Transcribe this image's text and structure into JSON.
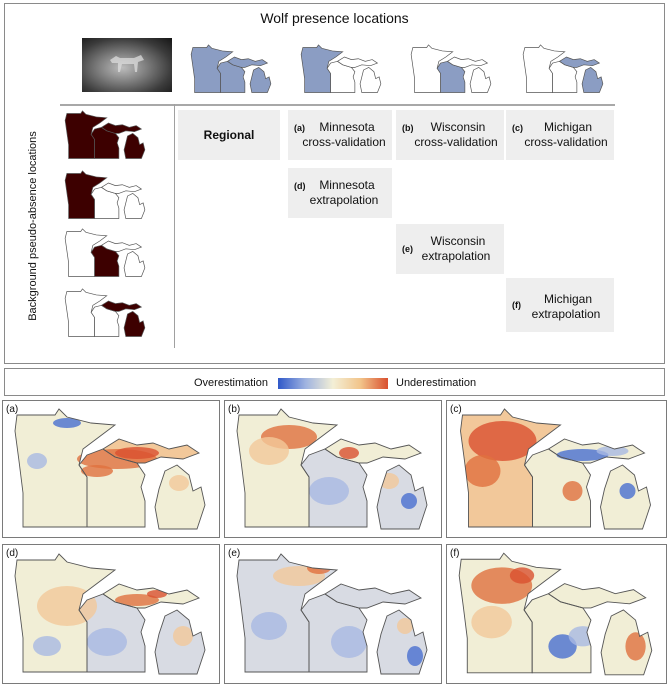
{
  "header": {
    "title": "Wolf presence locations"
  },
  "side": {
    "ylabel": "Background pseudo-absence locations"
  },
  "cells": {
    "regional": "Regional",
    "a": {
      "tag": "(a)",
      "line1": "Minnesota",
      "line2": "cross-validation"
    },
    "b": {
      "tag": "(b)",
      "line1": "Wisconsin",
      "line2": "cross-validation"
    },
    "c": {
      "tag": "(c)",
      "line1": "Michigan",
      "line2": "cross-validation"
    },
    "d": {
      "tag": "(d)",
      "line1": "Minnesota",
      "line2": "extrapolation"
    },
    "e": {
      "tag": "(e)",
      "line1": "Wisconsin",
      "line2": "extrapolation"
    },
    "f": {
      "tag": "(f)",
      "line1": "Michigan",
      "line2": "extrapolation"
    }
  },
  "legend": {
    "left": "Overestimation",
    "right": "Underestimation",
    "colors": [
      "#2f58c9",
      "#9fb3e0",
      "#f3efd6",
      "#f2c48a",
      "#d9502f"
    ]
  },
  "colors": {
    "presence": "#8b9dc3",
    "absence": "#3d0000",
    "outline": "#555555"
  },
  "panels": [
    {
      "label": "(a)",
      "pattern": "east-under"
    },
    {
      "label": "(b)",
      "pattern": "north-under"
    },
    {
      "label": "(c)",
      "pattern": "mn-under"
    },
    {
      "label": "(d)",
      "pattern": "mixed-light"
    },
    {
      "label": "(e)",
      "pattern": "over-grey"
    },
    {
      "label": "(f)",
      "pattern": "mixed-strong"
    }
  ]
}
